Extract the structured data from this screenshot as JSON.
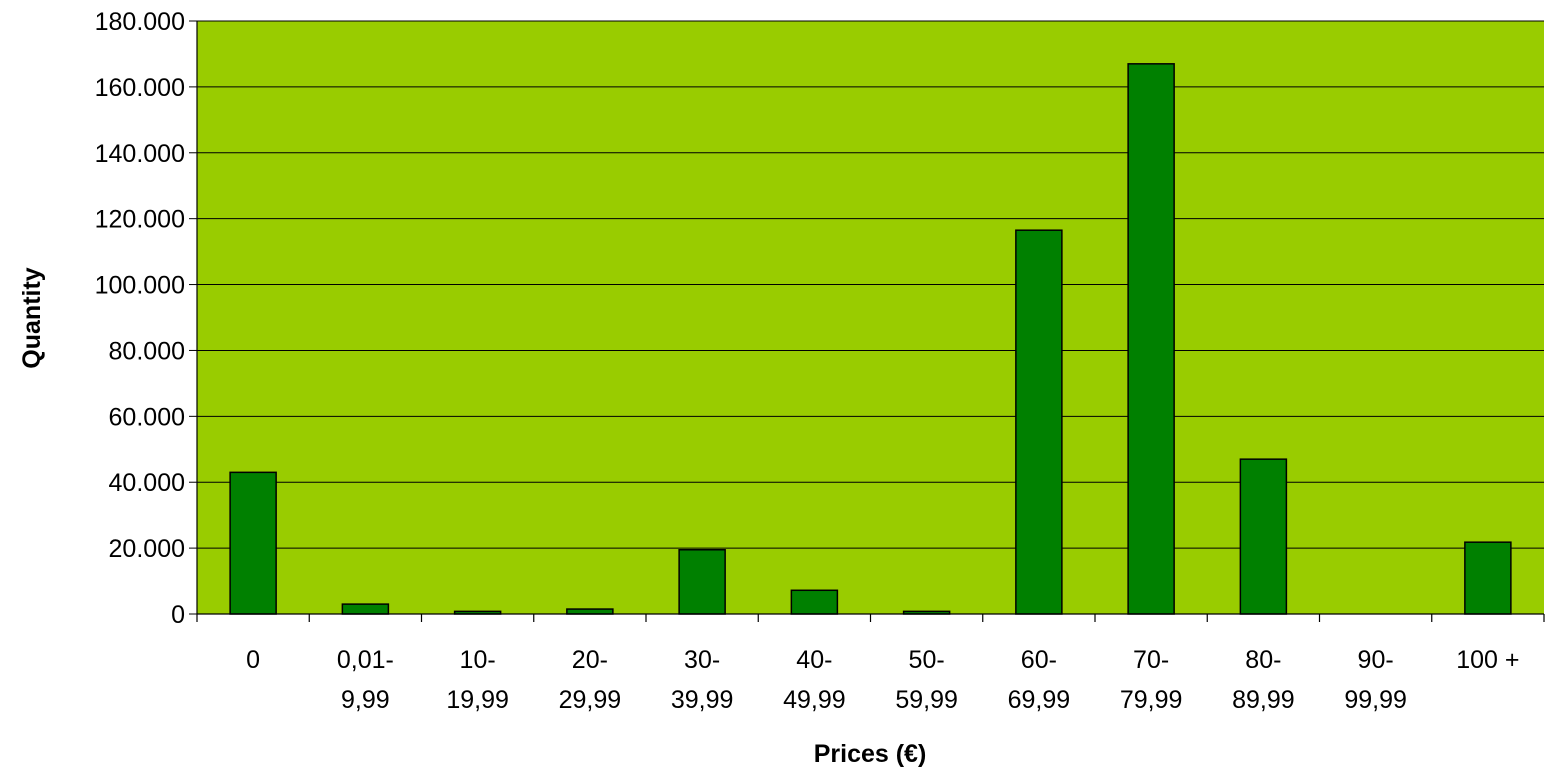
{
  "chart_data": {
    "type": "bar",
    "title": "",
    "xlabel": "Prices (€)",
    "ylabel": "Quantity",
    "categories": [
      [
        "0"
      ],
      [
        "0,01-",
        "9,99"
      ],
      [
        "10-",
        "19,99"
      ],
      [
        "20-",
        "29,99"
      ],
      [
        "30-",
        "39,99"
      ],
      [
        "40-",
        "49,99"
      ],
      [
        "50-",
        "59,99"
      ],
      [
        "60-",
        "69,99"
      ],
      [
        "70-",
        "79,99"
      ],
      [
        "80-",
        "89,99"
      ],
      [
        "90-",
        "99,99"
      ],
      [
        "100 +"
      ]
    ],
    "values": [
      43000,
      3000,
      800,
      1500,
      19500,
      7200,
      800,
      116500,
      167000,
      47000,
      0,
      21800
    ],
    "ylim": [
      0,
      180000
    ],
    "yticks": [
      0,
      20000,
      40000,
      60000,
      80000,
      100000,
      120000,
      140000,
      160000,
      180000
    ],
    "ytick_labels": [
      "0",
      "20.000",
      "40.000",
      "60.000",
      "80.000",
      "100.000",
      "120.000",
      "140.000",
      "160.000",
      "180.000"
    ],
    "grid": true,
    "legend": "none",
    "colors": {
      "plot_background": "#99CC00",
      "bar_fill": "#008000",
      "bar_stroke": "#000000",
      "gridline": "#000000"
    }
  }
}
